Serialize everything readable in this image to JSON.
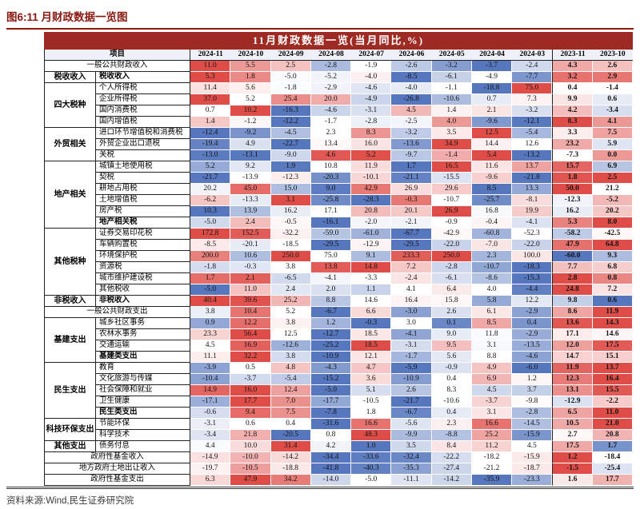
{
  "page": {
    "figure_title": "图6:11 月财政数据一览图",
    "source": "资料来源:Wind,民生证券研究院"
  },
  "chart_data": {
    "type": "heatmap",
    "title": "11月财政数据一览(当月同比,%)",
    "row_header_label": "项目",
    "columns": [
      "2024-11",
      "2024-10",
      "2024-09",
      "2024-08",
      "2024-07",
      "2024-06",
      "2024-05",
      "2024-04",
      "2024-03",
      "2023-11",
      "2023-10"
    ],
    "color_scale": {
      "max_color": "#df4d48",
      "mid_color": "#ffffff",
      "min_color": "#5677be",
      "midpoint": "row-median",
      "note": "red = high within row, blue = low within row"
    },
    "rows": [
      {
        "span": true,
        "label": "一般公共财政收入",
        "values": [
          11.0,
          5.5,
          2.5,
          -2.8,
          -1.9,
          -2.6,
          -3.2,
          -3.7,
          -2.4,
          4.3,
          2.6
        ]
      },
      {
        "group": "税收收入",
        "group_span": 1,
        "label": "税收收入",
        "bold": true,
        "values": [
          5.3,
          1.8,
          -5.0,
          -5.2,
          -4.0,
          -8.5,
          -6.1,
          -4.9,
          -7.7,
          3.2,
          2.9
        ]
      },
      {
        "group": "四大税种",
        "group_span": 4,
        "label": "个人所得税",
        "values": [
          11.4,
          5.6,
          -1.8,
          -2.9,
          -4.6,
          -4.0,
          -1.1,
          -18.8,
          75.0,
          0.4,
          -1.4
        ]
      },
      {
        "label": "企业所得税",
        "values": [
          37.0,
          5.2,
          25.4,
          20.0,
          -4.9,
          -26.8,
          -10.6,
          0.7,
          7.3,
          9.9,
          0.6
        ]
      },
      {
        "label": "国内消费税",
        "values": [
          0.7,
          10.2,
          -16.3,
          -4.6,
          -3.1,
          4.5,
          1.4,
          2.1,
          -3.2,
          4.2,
          -3.4
        ]
      },
      {
        "label": "国内增值税",
        "values": [
          1.4,
          -1.2,
          -12.2,
          -1.7,
          -2.8,
          -2.5,
          4.0,
          -9.6,
          -12.1,
          8.3,
          4.1
        ]
      },
      {
        "group": "外贸相关",
        "group_span": 3,
        "label": "进口环节增值税和消费税",
        "values": [
          -12.4,
          -9.2,
          -4.5,
          2.3,
          8.3,
          -3.2,
          3.5,
          12.5,
          -5.4,
          3.3,
          7.5
        ]
      },
      {
        "label": "外贸企业出口退税",
        "values": [
          -19.4,
          4.9,
          -22.7,
          13.4,
          16.0,
          -13.6,
          34.9,
          14.4,
          12.6,
          23.2,
          5.9
        ]
      },
      {
        "label": "关税",
        "values": [
          -13.0,
          -13.1,
          -9.0,
          4.6,
          5.2,
          -9.7,
          -1.4,
          5.4,
          -13.2,
          -7.3,
          0.0
        ]
      },
      {
        "group": "地产相关",
        "group_span": 6,
        "label": "城镇土地使用税",
        "values": [
          5.2,
          9.2,
          1.9,
          10.8,
          11.9,
          1.7,
          16.5,
          11.6,
          13.7,
          15.7,
          6.9
        ]
      },
      {
        "label": "契税",
        "values": [
          -21.7,
          -13.9,
          -12.3,
          -20.3,
          -10.1,
          -21.1,
          -15.5,
          -9.6,
          -21.8,
          1.8,
          2.5
        ]
      },
      {
        "label": "耕地占用税",
        "values": [
          20.2,
          45.0,
          15.0,
          9.0,
          42.9,
          26.9,
          29.6,
          8.5,
          13.3,
          50.0,
          21.2
        ]
      },
      {
        "label": "土地增值税",
        "values": [
          -6.2,
          -13.3,
          3.1,
          -25.8,
          -28.3,
          -0.3,
          -10.7,
          -25.7,
          -8.1,
          -12.3,
          -5.2
        ]
      },
      {
        "label": "房产税",
        "values": [
          10.3,
          13.9,
          16.2,
          17.1,
          20.8,
          20.1,
          26.9,
          16.8,
          19.9,
          16.2,
          20.2
        ]
      },
      {
        "label": "地产相关税",
        "bold": true,
        "values": [
          -5.0,
          2.4,
          -0.5,
          -16.1,
          -2.0,
          -2.1,
          -0.9,
          -0.4,
          -4.1,
          5.3,
          8.0
        ]
      },
      {
        "group": "其他税种",
        "group_span": 6,
        "label": "证券交易印花税",
        "values": [
          172.8,
          152.5,
          -32.2,
          -59.0,
          -61.0,
          -67.7,
          -42.9,
          -60.8,
          -52.3,
          -58.2,
          -42.5
        ]
      },
      {
        "label": "车辆购置税",
        "values": [
          -8.5,
          -20.1,
          -18.5,
          -29.5,
          -12.9,
          -29.5,
          -22.0,
          -7.0,
          -22.0,
          47.9,
          64.8
        ]
      },
      {
        "label": "环境保护税",
        "values": [
          200.0,
          10.6,
          250.0,
          75.0,
          9.1,
          233.3,
          250.0,
          2.3,
          100.0,
          -60.0,
          9.3
        ]
      },
      {
        "label": "资源税",
        "values": [
          -1.8,
          -0.3,
          3.8,
          13.8,
          14.8,
          7.2,
          -2.8,
          -10.7,
          -18.3,
          7.7,
          6.8
        ]
      },
      {
        "label": "城市维护建设税",
        "values": [
          1.7,
          2.1,
          -6.5,
          -4.1,
          -3.3,
          -2.4,
          -6.1,
          -8.6,
          -15.3,
          2.8,
          0.8
        ]
      },
      {
        "label": "其他税收",
        "values": [
          -5.0,
          11.0,
          2.4,
          2.0,
          1.1,
          4.1,
          6.4,
          4.0,
          -4.4,
          24.8,
          7.2
        ]
      },
      {
        "group": "非税收入",
        "group_span": 1,
        "label": "非税收入",
        "bold": true,
        "values": [
          40.4,
          39.6,
          25.2,
          8.8,
          14.6,
          16.4,
          15.8,
          5.8,
          12.2,
          9.8,
          0.6
        ]
      },
      {
        "span": true,
        "label": "一般公共财政支出",
        "values": [
          3.8,
          10.4,
          5.2,
          -6.7,
          6.6,
          -3.0,
          2.6,
          6.1,
          -2.9,
          8.6,
          11.9
        ]
      },
      {
        "group": "基建支出",
        "group_span": 4,
        "label": "城乡社区事务",
        "values": [
          0.9,
          12.2,
          3.8,
          1.2,
          -0.3,
          3.0,
          0.1,
          8.5,
          0.4,
          13.6,
          14.3
        ]
      },
      {
        "label": "农林水事务",
        "values": [
          23.3,
          56.4,
          12.5,
          -12.7,
          18.5,
          -4.1,
          9.0,
          11.8,
          -2.9,
          17.1,
          14.6
        ]
      },
      {
        "label": "交通运输",
        "values": [
          4.5,
          16.9,
          -12.6,
          -25.2,
          18.5,
          -3.1,
          9.5,
          3.1,
          -13.5,
          12.0,
          17.5
        ]
      },
      {
        "label": "基建类支出",
        "bold": true,
        "values": [
          11.1,
          32.2,
          3.8,
          -10.9,
          12.1,
          -1.7,
          5.6,
          8.8,
          -4.6,
          14.7,
          15.1
        ]
      },
      {
        "group": "民生支出",
        "group_span": 5,
        "label": "教育",
        "values": [
          -3.9,
          0.5,
          4.8,
          -4.3,
          4.7,
          -5.9,
          -0.9,
          4.9,
          -6.0,
          11.9,
          13.7
        ]
      },
      {
        "label": "文化旅游与传媒",
        "values": [
          -10.4,
          -3.7,
          -5.4,
          -15.2,
          3.6,
          -10.9,
          0.4,
          6.9,
          1.2,
          12.3,
          16.4
        ]
      },
      {
        "label": "社会保障和就业",
        "values": [
          14.9,
          16.0,
          12.4,
          -5.0,
          5.1,
          2.6,
          8.3,
          4.5,
          3.7,
          13.1,
          15.5
        ]
      },
      {
        "label": "卫生健康",
        "values": [
          -17.1,
          17.7,
          7.0,
          -17.7,
          -10.5,
          -21.7,
          -10.6,
          -3.7,
          -9.8,
          -12.9,
          -2.2
        ]
      },
      {
        "label": "民生类支出",
        "bold": true,
        "values": [
          -0.6,
          9.4,
          7.5,
          -7.8,
          1.8,
          -6.7,
          0.4,
          3.1,
          -2.8,
          6.5,
          11.0
        ]
      },
      {
        "group": "科技环保支出",
        "group_span": 2,
        "label": "节能环保",
        "values": [
          -3.1,
          0.6,
          0.4,
          -31.6,
          16.6,
          -5.6,
          2.3,
          16.6,
          -14.5,
          10.5,
          21.0
        ]
      },
      {
        "label": "科学技术",
        "values": [
          -3.4,
          21.8,
          -20.5,
          0.8,
          48.3,
          -9.9,
          -8.8,
          25.2,
          -15.9,
          2.7,
          20.8
        ]
      },
      {
        "group": "其他支出",
        "group_span": 1,
        "label": "债务付息",
        "values": [
          4.4,
          10.0,
          31.4,
          4.2,
          1.0,
          3.5,
          8.4,
          11.2,
          4.5,
          17.5,
          1.7
        ]
      },
      {
        "span": true,
        "label": "政府性基金收入",
        "values": [
          -14.9,
          -10.0,
          -14.2,
          -34.4,
          -33.6,
          -32.4,
          -22.2,
          -18.2,
          -15.9,
          1.2,
          -18.4
        ]
      },
      {
        "span": true,
        "label": "地方政府土地出让收入",
        "values": [
          -19.7,
          -10.5,
          -18.8,
          -41.8,
          -40.3,
          -35.3,
          -27.4,
          -21.2,
          -18.7,
          -1.5,
          -25.4
        ]
      },
      {
        "span": true,
        "label": "政府性基金支出",
        "values": [
          6.3,
          47.9,
          34.2,
          -14.0,
          -5.0,
          -11.1,
          -14.2,
          -35.9,
          -23.3,
          1.6,
          17.7
        ]
      }
    ]
  }
}
